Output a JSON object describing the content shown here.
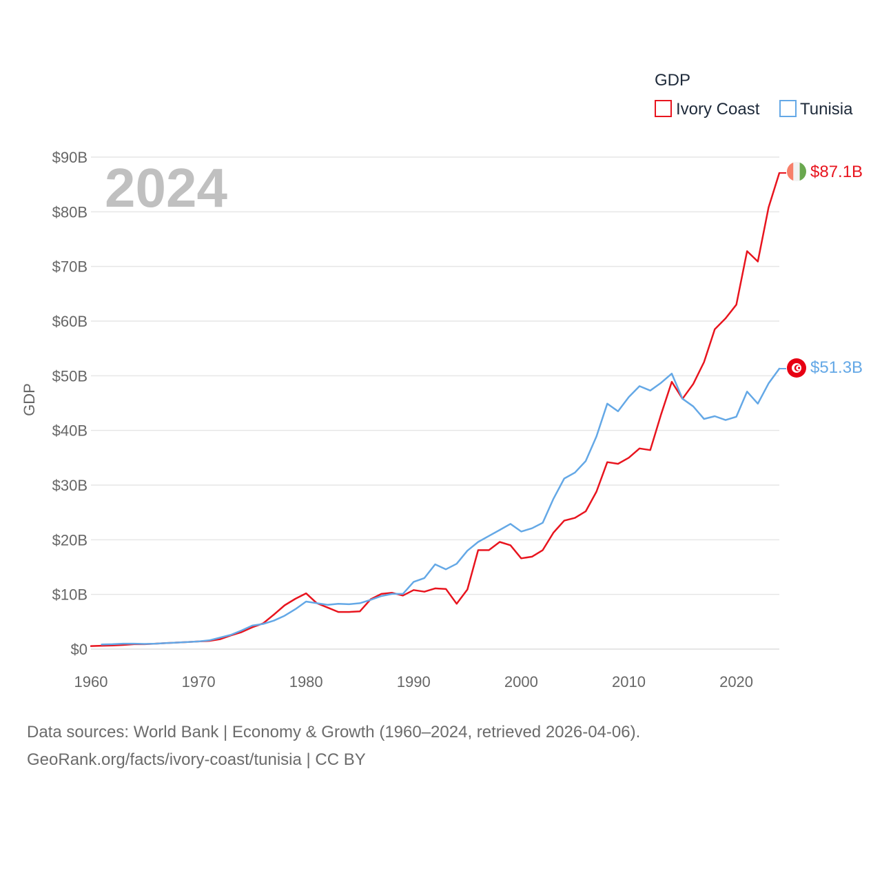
{
  "chart_data": {
    "type": "line",
    "title": "",
    "year_overlay": "2024",
    "xlabel": "",
    "ylabel": "GDP",
    "xlim": [
      1960,
      2024
    ],
    "ylim": [
      0,
      90
    ],
    "y_unit": "billion USD",
    "y_ticks": [
      0,
      10,
      20,
      30,
      40,
      50,
      60,
      70,
      80,
      90
    ],
    "y_tick_labels": [
      "$0",
      "$10B",
      "$20B",
      "$30B",
      "$40B",
      "$50B",
      "$60B",
      "$70B",
      "$80B",
      "$90B"
    ],
    "x_ticks": [
      1960,
      1970,
      1980,
      1990,
      2000,
      2010,
      2020
    ],
    "x_tick_labels": [
      "1960",
      "1970",
      "1980",
      "1990",
      "2000",
      "2010",
      "2020"
    ],
    "grid": true,
    "legend": {
      "title": "GDP",
      "position": "top-right"
    },
    "series": [
      {
        "name": "Ivory Coast",
        "color": "#e8141e",
        "end_label": "$87.1B",
        "flag": "ivory-coast-flag-icon",
        "x": [
          1960,
          1961,
          1962,
          1963,
          1964,
          1965,
          1966,
          1967,
          1968,
          1969,
          1970,
          1971,
          1972,
          1973,
          1974,
          1975,
          1976,
          1977,
          1978,
          1979,
          1980,
          1981,
          1982,
          1983,
          1984,
          1985,
          1986,
          1987,
          1988,
          1989,
          1990,
          1991,
          1992,
          1993,
          1994,
          1995,
          1996,
          1997,
          1998,
          1999,
          2000,
          2001,
          2002,
          2003,
          2004,
          2005,
          2006,
          2007,
          2008,
          2009,
          2010,
          2011,
          2012,
          2013,
          2014,
          2015,
          2016,
          2017,
          2018,
          2019,
          2020,
          2021,
          2022,
          2023,
          2024
        ],
        "values": [
          0.55,
          0.62,
          0.65,
          0.75,
          0.9,
          0.9,
          1.0,
          1.1,
          1.2,
          1.3,
          1.4,
          1.5,
          1.8,
          2.5,
          3.1,
          4.0,
          4.7,
          6.3,
          8.0,
          9.2,
          10.2,
          8.4,
          7.6,
          6.8,
          6.8,
          6.9,
          9.1,
          10.1,
          10.3,
          9.8,
          10.8,
          10.5,
          11.1,
          11.0,
          8.3,
          10.9,
          18.1,
          18.1,
          19.6,
          19.0,
          16.6,
          16.9,
          18.1,
          21.3,
          23.5,
          24.0,
          25.2,
          28.8,
          34.2,
          33.9,
          35.0,
          36.7,
          36.4,
          42.9,
          48.9,
          45.8,
          48.5,
          52.5,
          58.5,
          60.5,
          63.0,
          72.8,
          70.9,
          80.8,
          87.1
        ]
      },
      {
        "name": "Tunisia",
        "color": "#64a8e6",
        "end_label": "$51.3B",
        "flag": "tunisia-flag-icon",
        "x": [
          1961,
          1962,
          1963,
          1964,
          1965,
          1966,
          1967,
          1968,
          1969,
          1970,
          1971,
          1972,
          1973,
          1974,
          1975,
          1976,
          1977,
          1978,
          1979,
          1980,
          1981,
          1982,
          1983,
          1984,
          1985,
          1986,
          1987,
          1988,
          1989,
          1990,
          1991,
          1992,
          1993,
          1994,
          1995,
          1996,
          1997,
          1998,
          1999,
          2000,
          2001,
          2002,
          2003,
          2004,
          2005,
          2006,
          2007,
          2008,
          2009,
          2010,
          2011,
          2012,
          2013,
          2014,
          2015,
          2016,
          2017,
          2018,
          2019,
          2020,
          2021,
          2022,
          2023,
          2024
        ],
        "values": [
          0.85,
          0.9,
          1.0,
          1.0,
          0.95,
          1.0,
          1.1,
          1.2,
          1.3,
          1.4,
          1.6,
          2.1,
          2.6,
          3.4,
          4.3,
          4.6,
          5.2,
          6.1,
          7.3,
          8.7,
          8.4,
          8.1,
          8.3,
          8.2,
          8.4,
          9.0,
          9.7,
          10.1,
          10.1,
          12.3,
          13.0,
          15.5,
          14.6,
          15.6,
          18.0,
          19.6,
          20.7,
          21.8,
          22.9,
          21.5,
          22.1,
          23.1,
          27.5,
          31.2,
          32.3,
          34.4,
          38.9,
          44.9,
          43.5,
          46.1,
          48.1,
          47.3,
          48.7,
          50.4,
          45.8,
          44.4,
          42.1,
          42.6,
          41.9,
          42.5,
          47.1,
          44.9,
          48.6,
          51.3
        ]
      }
    ]
  },
  "footer": {
    "line1": "Data sources: World Bank | Economy & Growth (1960–2024, retrieved 2026-04-06).",
    "line2": "GeoRank.org/facts/ivory-coast/tunisia | CC BY"
  }
}
